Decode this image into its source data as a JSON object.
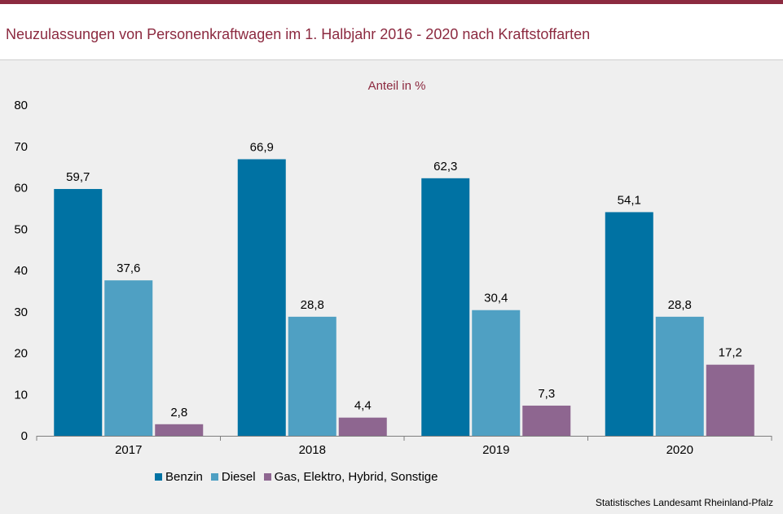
{
  "header": {
    "title": "Neuzulassungen von Personenkraftwagen im 1. Halbjahr 2016 - 2020 nach Kraftstoffarten"
  },
  "chart_data": {
    "type": "bar",
    "subtitle": "Anteil in %",
    "categories": [
      "2017",
      "2018",
      "2019",
      "2020"
    ],
    "series": [
      {
        "name": "Benzin",
        "values": [
          59.7,
          66.9,
          62.3,
          54.1
        ],
        "labels": [
          "59,7",
          "66,9",
          "62,3",
          "54,1"
        ],
        "color": "#0072a3"
      },
      {
        "name": "Diesel",
        "values": [
          37.6,
          28.8,
          30.4,
          28.8
        ],
        "labels": [
          "37,6",
          "28,8",
          "30,4",
          "28,8"
        ],
        "color": "#4fa0c3"
      },
      {
        "name": "Gas, Elektro, Hybrid, Sonstige",
        "values": [
          2.8,
          4.4,
          7.3,
          17.2
        ],
        "labels": [
          "2,8",
          "4,4",
          "7,3",
          "17,2"
        ],
        "color": "#8e6690"
      }
    ],
    "ylim": [
      0,
      80
    ],
    "yticks": [
      0,
      10,
      20,
      30,
      40,
      50,
      60,
      70,
      80
    ],
    "legend_position": "bottom-left",
    "grid": false
  },
  "footer": {
    "source": "Statistisches Landesamt Rheinland-Pfalz"
  }
}
